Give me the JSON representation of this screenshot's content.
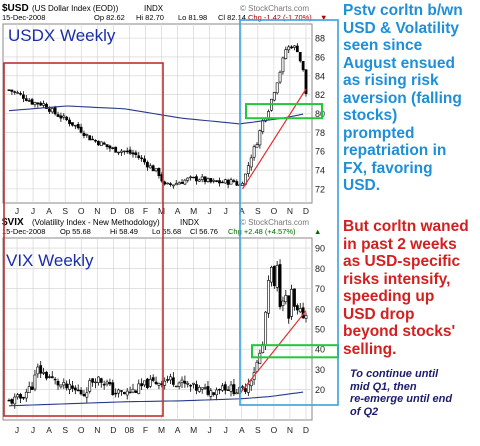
{
  "commentary": {
    "blue": "Pstv corltn b/wn\nUSD & Volatility\nseen since\nAugust ensued\nas rising risk\naversion (falling\nstocks)\nprompted\nrepatriation in\nFX, favoring\nUSD.",
    "red": "But corltn waned\nin past 2 weeks\nas USD-specific\nrisks intensify,\nspeeding up\nUSD drop\nbeyond stocks'\nselling.",
    "note": "To continue until\nmid Q1, then\nre-emerge until end\nof Q2"
  },
  "colors": {
    "candle": "#000000",
    "ma_line": "#2a3a8c",
    "trend_line": "#e03030",
    "green_zone": "#22c83a",
    "blue_box": "#3aa0e0",
    "red_box": "#c03030",
    "label_blue": "#1a2ea8",
    "grid": "#cfcfcf"
  },
  "chart_data": [
    {
      "type": "candlestick",
      "symbol": "$USD",
      "header": {
        "symbol": "$USD",
        "name": "(US Dollar Index (EOD))",
        "exchange": "INDX",
        "date": "15-Dec-2008",
        "op": "Op 82.62",
        "hi": "Hi 82.70",
        "lo": "Lo 81.98",
        "cl": "Cl 82.14",
        "chg": "Chg -1.42 (-1.70%)",
        "chg_arrow": "▼",
        "watermark": "© StockCharts.com"
      },
      "label": "USDX Weekly",
      "x_tick_labels": [
        "J",
        "J",
        "A",
        "S",
        "O",
        "N",
        "D",
        "08",
        "F",
        "M",
        "A",
        "M",
        "J",
        "J",
        "A",
        "S",
        "O",
        "N",
        "D"
      ],
      "y_ticks": [
        72,
        74,
        76,
        78,
        80,
        82,
        84,
        86,
        88
      ],
      "ylim": [
        70.5,
        89.5
      ],
      "weekly_close_path": [
        [
          0,
          82.5
        ],
        [
          4,
          82.0
        ],
        [
          8,
          81.2
        ],
        [
          12,
          81.0
        ],
        [
          16,
          80.0
        ],
        [
          20,
          79.3
        ],
        [
          24,
          78.5
        ],
        [
          28,
          77.4
        ],
        [
          32,
          76.8
        ],
        [
          36,
          76.2
        ],
        [
          40,
          76.0
        ],
        [
          44,
          75.6
        ],
        [
          48,
          74.6
        ],
        [
          52,
          73.6
        ],
        [
          54,
          72.3
        ],
        [
          58,
          72.6
        ],
        [
          62,
          73.0
        ],
        [
          66,
          73.1
        ],
        [
          70,
          72.7
        ],
        [
          74,
          72.7
        ],
        [
          78,
          72.8
        ],
        [
          80,
          72.3
        ],
        [
          82,
          73.5
        ],
        [
          84,
          75.5
        ],
        [
          86,
          77.0
        ],
        [
          88,
          79.2
        ],
        [
          90,
          80.5
        ],
        [
          92,
          82.5
        ],
        [
          94,
          84.5
        ],
        [
          96,
          86.8
        ],
        [
          98,
          87.2
        ],
        [
          100,
          86.8
        ],
        [
          102,
          84.5
        ],
        [
          103,
          82.14
        ]
      ],
      "moving_average": [
        [
          0,
          80.3
        ],
        [
          20,
          80.8
        ],
        [
          40,
          80.5
        ],
        [
          60,
          79.5
        ],
        [
          80,
          78.9
        ],
        [
          95,
          79.5
        ],
        [
          103,
          80.0
        ]
      ],
      "trendline": [
        [
          81,
          72.0
        ],
        [
          103,
          82.6
        ]
      ],
      "support_zone": [
        79.5,
        81.0
      ]
    },
    {
      "type": "candlestick",
      "symbol": "$VIX",
      "header": {
        "symbol": "$VIX",
        "name": "(Volatility Index - New Methodology)",
        "exchange": "INDX",
        "date": "15-Dec-2008",
        "op": "Op 55.68",
        "hi": "Hi 58.49",
        "lo": "Lo 55.68",
        "cl": "Cl 56.76",
        "chg": "Chg +2.48 (+4.57%)",
        "chg_arrow": "▲",
        "watermark": "© StockCharts.com"
      },
      "label": "VIX Weekly",
      "x_tick_labels": [
        "J",
        "J",
        "A",
        "S",
        "O",
        "N",
        "D",
        "08",
        "F",
        "M",
        "A",
        "M",
        "J",
        "J",
        "A",
        "S",
        "O",
        "N",
        "D"
      ],
      "y_ticks": [
        20,
        30,
        40,
        50,
        60,
        70,
        80,
        90
      ],
      "ylim": [
        5,
        95
      ],
      "weekly_close_path": [
        [
          0,
          14
        ],
        [
          4,
          16
        ],
        [
          8,
          22
        ],
        [
          10,
          30
        ],
        [
          14,
          26
        ],
        [
          18,
          22
        ],
        [
          22,
          20
        ],
        [
          26,
          18
        ],
        [
          28,
          23
        ],
        [
          30,
          26
        ],
        [
          34,
          23
        ],
        [
          36,
          19
        ],
        [
          40,
          18
        ],
        [
          44,
          20
        ],
        [
          48,
          23
        ],
        [
          52,
          24
        ],
        [
          56,
          25
        ],
        [
          58,
          24
        ],
        [
          62,
          22
        ],
        [
          66,
          20
        ],
        [
          70,
          19
        ],
        [
          74,
          22
        ],
        [
          78,
          20
        ],
        [
          80,
          19
        ],
        [
          82,
          21
        ],
        [
          84,
          26
        ],
        [
          86,
          33
        ],
        [
          88,
          42
        ],
        [
          89,
          58
        ],
        [
          90,
          72
        ],
        [
          91,
          80
        ],
        [
          92,
          70
        ],
        [
          93,
          80
        ],
        [
          94,
          63
        ],
        [
          95,
          66
        ],
        [
          96,
          65
        ],
        [
          97,
          55
        ],
        [
          98,
          68
        ],
        [
          99,
          60
        ],
        [
          100,
          58
        ],
        [
          101,
          58
        ],
        [
          102,
          57
        ],
        [
          103,
          56.76
        ]
      ],
      "moving_average": [
        [
          0,
          12
        ],
        [
          20,
          13
        ],
        [
          40,
          14
        ],
        [
          60,
          14.5
        ],
        [
          80,
          15.5
        ],
        [
          90,
          16.5
        ],
        [
          103,
          19
        ]
      ],
      "trendline": [
        [
          80,
          18
        ],
        [
          103,
          59
        ]
      ],
      "support_zone": [
        36,
        42
      ]
    }
  ]
}
